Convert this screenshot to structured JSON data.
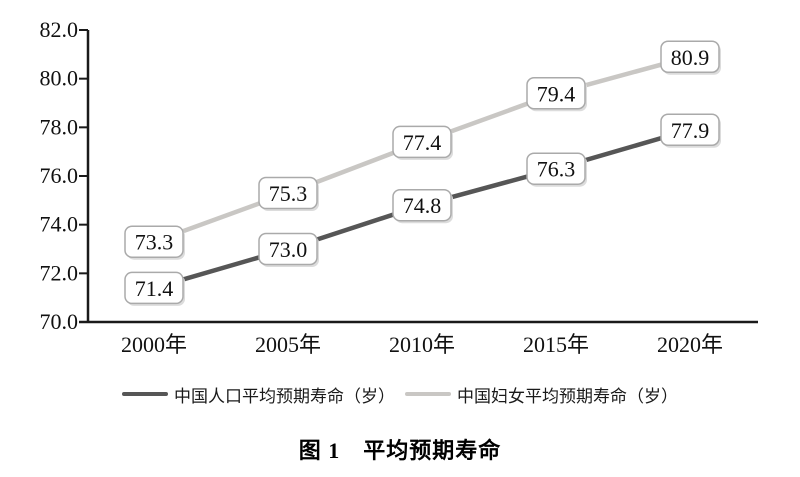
{
  "figure": {
    "caption": "图 1　平均预期寿命"
  },
  "chart_data": {
    "type": "line",
    "title": "图 1　平均预期寿命",
    "categories": [
      "2000年",
      "2005年",
      "2010年",
      "2015年",
      "2020年"
    ],
    "series": [
      {
        "name": "中国人口平均预期寿命（岁）",
        "color": "#565656",
        "values": [
          71.4,
          73.0,
          74.8,
          76.3,
          77.9
        ]
      },
      {
        "name": "中国妇女平均预期寿命（岁）",
        "color": "#c9c7c4",
        "values": [
          73.3,
          75.3,
          77.4,
          79.4,
          80.9
        ]
      }
    ],
    "ylim": [
      70,
      82
    ],
    "ytick_step": 2,
    "ytick_decimals": 1,
    "ytick_labels": [
      "70.0",
      "72.0",
      "74.0",
      "76.0",
      "78.0",
      "80.0",
      "82.0"
    ],
    "grid": false,
    "data_labels": true,
    "legend_position": "bottom",
    "axis_color": "#1a1a1a",
    "label_box": {
      "fill": "#ffffff",
      "border": "#aaaaaa",
      "shadow": "#dcdcdc",
      "text_color": "#111111"
    }
  }
}
